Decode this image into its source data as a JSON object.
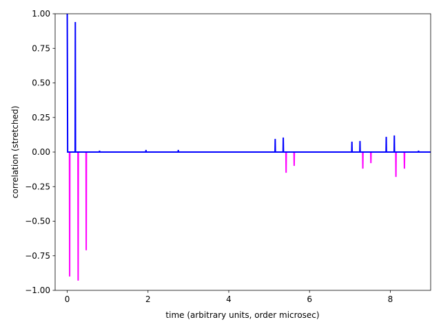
{
  "chart_data": {
    "type": "line",
    "xlabel": "time (arbitrary units, order microsec)",
    "ylabel": "correlation (stretched)",
    "xlim": [
      -0.3,
      9
    ],
    "xticks": [
      0,
      2,
      4,
      6,
      8
    ],
    "ylim": [
      -1,
      1
    ],
    "yticks": [
      {
        "value": -1,
        "label": "−1.00"
      },
      {
        "value": -0.75,
        "label": "−0.75"
      },
      {
        "value": -0.5,
        "label": "−0.50"
      },
      {
        "value": -0.25,
        "label": "−0.25"
      },
      {
        "value": 0,
        "label": "0.00"
      },
      {
        "value": 0.25,
        "label": "0.25"
      },
      {
        "value": 0.5,
        "label": "0.50"
      },
      {
        "value": 0.75,
        "label": "0.75"
      },
      {
        "value": 1,
        "label": "1.00"
      }
    ],
    "series": [
      {
        "color": "#ff00ff",
        "x": [
          0.055,
          0.06,
          0.065,
          0.265,
          0.27,
          0.275,
          0.465,
          0.47,
          0.475,
          5.415,
          5.42,
          5.425,
          5.615,
          5.62,
          5.625,
          7.315,
          7.32,
          7.325,
          7.515,
          7.52,
          7.525,
          8.135,
          8.14,
          8.145,
          8.345,
          8.35,
          8.355
        ],
        "values": [
          0,
          -0.9,
          0,
          0,
          -0.93,
          0,
          0,
          -0.71,
          0,
          0,
          -0.15,
          0,
          0,
          -0.1,
          0,
          0,
          -0.12,
          0,
          0,
          -0.08,
          0,
          0,
          -0.18,
          0,
          0,
          -0.12,
          0
        ]
      },
      {
        "color": "#0000ff",
        "x": [
          0,
          0.01,
          0.195,
          0.2,
          0.205,
          0.795,
          0.8,
          0.805,
          1.945,
          1.95,
          1.955,
          2.745,
          2.75,
          2.755,
          5.145,
          5.15,
          5.155,
          5.345,
          5.35,
          5.355,
          7.045,
          7.05,
          7.055,
          7.245,
          7.25,
          7.255,
          7.895,
          7.9,
          7.905,
          8.095,
          8.1,
          8.105,
          8.695,
          8.7,
          8.705,
          9
        ],
        "values": [
          1,
          0,
          0,
          0.94,
          0,
          0,
          0.01,
          0,
          0,
          0.015,
          0,
          0,
          0.015,
          0,
          0,
          0.095,
          0,
          0,
          0.105,
          0,
          0,
          0.075,
          0,
          0,
          0.08,
          0,
          0,
          0.11,
          0,
          0,
          0.12,
          0,
          0,
          0.01,
          0,
          0
        ]
      }
    ]
  }
}
